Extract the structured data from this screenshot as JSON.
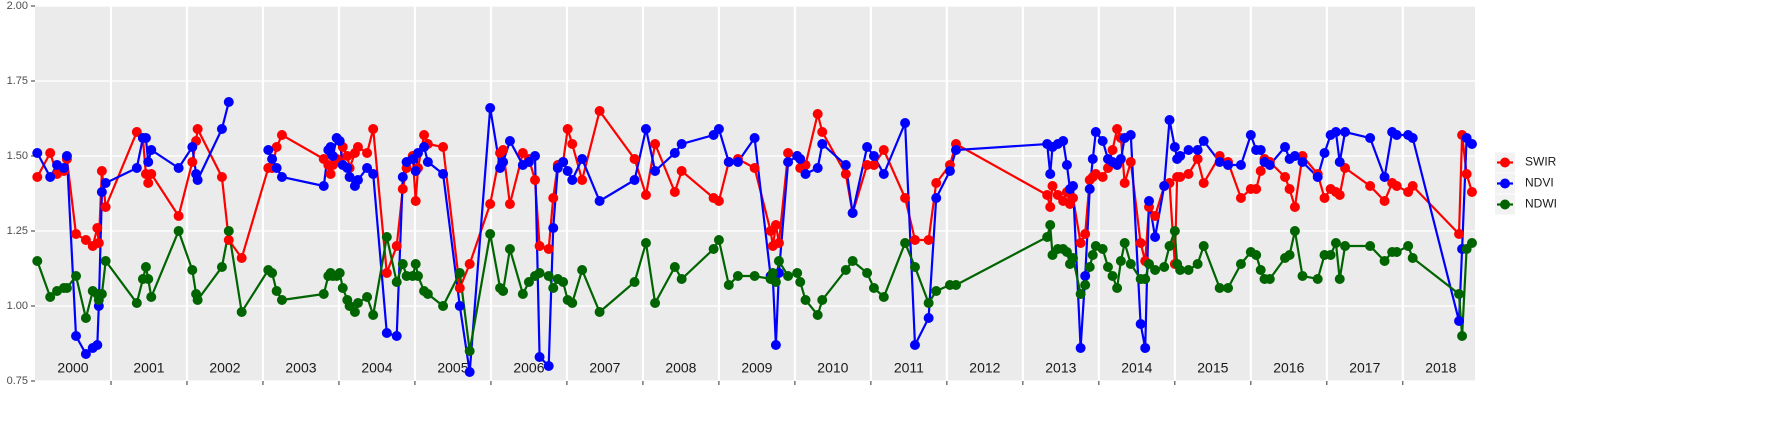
{
  "chart_data": {
    "type": "line",
    "x": [
      2000.03,
      2000.2,
      2000.29,
      2000.38,
      2000.42,
      2000.54,
      2000.67,
      2000.76,
      2000.82,
      2000.84,
      2000.88,
      2000.93,
      2001.34,
      2001.42,
      2001.46,
      2001.49,
      2001.53,
      2001.89,
      2002.07,
      2002.12,
      2002.14,
      2002.46,
      2002.55,
      2002.72,
      2003.07,
      2003.12,
      2003.18,
      2003.25,
      2003.8,
      2003.86,
      2003.89,
      2003.92,
      2003.97,
      2004.01,
      2004.05,
      2004.11,
      2004.14,
      2004.21,
      2004.25,
      2004.37,
      2004.45,
      2004.63,
      2004.76,
      2004.84,
      2004.89,
      2004.97,
      2005.01,
      2005.04,
      2005.12,
      2005.17,
      2005.37,
      2005.59,
      2005.72,
      2005.99,
      2006.12,
      2006.16,
      2006.25,
      2006.42,
      2006.5,
      2006.58,
      2006.64,
      2006.76,
      2006.82,
      2006.88,
      2006.95,
      2007.01,
      2007.07,
      2007.2,
      2007.43,
      2007.89,
      2008.04,
      2008.16,
      2008.42,
      2008.51,
      2008.93,
      2009.0,
      2009.13,
      2009.25,
      2009.47,
      2009.68,
      2009.71,
      2009.75,
      2009.79,
      2009.91,
      2010.03,
      2010.07,
      2010.14,
      2010.3,
      2010.36,
      2010.67,
      2010.76,
      2010.95,
      2011.04,
      2011.17,
      2011.45,
      2011.58,
      2011.76,
      2011.86,
      2012.04,
      2012.12,
      2013.32,
      2013.36,
      2013.39,
      2013.46,
      2013.53,
      2013.58,
      2013.62,
      2013.66,
      2013.76,
      2013.82,
      2013.88,
      2013.92,
      2013.96,
      2014.05,
      2014.12,
      2014.18,
      2014.24,
      2014.29,
      2014.34,
      2014.42,
      2014.55,
      2014.61,
      2014.66,
      2014.74,
      2014.86,
      2014.93,
      2015.0,
      2015.03,
      2015.07,
      2015.18,
      2015.3,
      2015.38,
      2015.59,
      2015.7,
      2015.87,
      2016.0,
      2016.07,
      2016.13,
      2016.18,
      2016.25,
      2016.45,
      2016.51,
      2016.58,
      2016.68,
      2016.88,
      2016.97,
      2017.05,
      2017.12,
      2017.17,
      2017.24,
      2017.57,
      2017.76,
      2017.86,
      2017.92,
      2018.07,
      2018.13,
      2018.74,
      2018.78,
      2018.84,
      2018.91
    ],
    "series": [
      {
        "name": "SWIR",
        "color": "#ff0000",
        "values": [
          1.43,
          1.51,
          1.44,
          1.45,
          1.49,
          1.24,
          1.22,
          1.2,
          1.26,
          1.21,
          1.45,
          1.33,
          1.58,
          1.56,
          1.44,
          1.41,
          1.44,
          1.3,
          1.48,
          1.55,
          1.59,
          1.43,
          1.22,
          1.16,
          1.46,
          1.46,
          1.53,
          1.57,
          1.49,
          1.47,
          1.44,
          1.47,
          1.49,
          1.48,
          1.53,
          1.5,
          1.46,
          1.51,
          1.53,
          1.51,
          1.59,
          1.11,
          1.2,
          1.39,
          1.46,
          1.5,
          1.35,
          1.46,
          1.57,
          1.54,
          1.53,
          1.06,
          1.14,
          1.34,
          1.51,
          1.52,
          1.34,
          1.51,
          1.49,
          1.42,
          1.2,
          1.19,
          1.36,
          1.47,
          1.48,
          1.59,
          1.54,
          1.42,
          1.65,
          1.49,
          1.37,
          1.54,
          1.38,
          1.45,
          1.36,
          1.35,
          1.48,
          1.49,
          1.46,
          1.25,
          1.2,
          1.27,
          1.21,
          1.51,
          1.5,
          1.46,
          1.47,
          1.64,
          1.58,
          1.44,
          1.31,
          1.47,
          1.47,
          1.52,
          1.36,
          1.22,
          1.22,
          1.41,
          1.47,
          1.54,
          1.37,
          1.33,
          1.4,
          1.37,
          1.35,
          1.38,
          1.34,
          1.36,
          1.21,
          1.24,
          1.42,
          1.43,
          1.44,
          1.43,
          1.46,
          1.52,
          1.59,
          1.56,
          1.41,
          1.48,
          1.21,
          1.15,
          1.33,
          1.3,
          1.4,
          1.41,
          1.14,
          1.43,
          1.43,
          1.44,
          1.49,
          1.41,
          1.5,
          1.48,
          1.36,
          1.39,
          1.39,
          1.45,
          1.49,
          1.48,
          1.43,
          1.39,
          1.33,
          1.5,
          1.44,
          1.36,
          1.39,
          1.38,
          1.37,
          1.46,
          1.4,
          1.35,
          1.41,
          1.4,
          1.38,
          1.4,
          1.24,
          1.57,
          1.44,
          1.38
        ]
      },
      {
        "name": "NDVI",
        "color": "#0000ff",
        "values": [
          1.51,
          1.43,
          1.47,
          1.46,
          1.5,
          0.9,
          0.84,
          0.86,
          0.87,
          1.0,
          1.38,
          1.41,
          1.46,
          1.56,
          1.56,
          1.48,
          1.52,
          1.46,
          1.53,
          1.44,
          1.42,
          1.59,
          1.68,
          null,
          1.52,
          1.49,
          1.46,
          1.43,
          1.4,
          1.52,
          1.53,
          1.5,
          1.56,
          1.55,
          1.47,
          1.46,
          1.43,
          1.4,
          1.42,
          1.46,
          1.44,
          0.91,
          0.9,
          1.43,
          1.48,
          1.49,
          1.45,
          1.51,
          1.53,
          1.48,
          1.44,
          1.0,
          0.78,
          1.66,
          1.46,
          1.48,
          1.55,
          1.47,
          1.48,
          1.5,
          0.83,
          0.8,
          1.26,
          1.46,
          1.48,
          1.45,
          1.42,
          1.49,
          1.35,
          1.42,
          1.59,
          1.45,
          1.51,
          1.54,
          1.57,
          1.59,
          1.48,
          1.48,
          1.56,
          1.1,
          1.09,
          0.87,
          1.11,
          1.48,
          1.5,
          1.49,
          1.44,
          1.46,
          1.54,
          1.47,
          1.31,
          1.53,
          1.5,
          1.44,
          1.61,
          0.87,
          0.96,
          1.36,
          1.45,
          1.52,
          1.54,
          1.44,
          1.53,
          1.54,
          1.55,
          1.47,
          1.39,
          1.4,
          0.86,
          1.1,
          1.39,
          1.49,
          1.58,
          1.55,
          1.49,
          1.48,
          1.47,
          1.49,
          1.56,
          1.57,
          0.94,
          0.86,
          1.35,
          1.23,
          1.4,
          1.62,
          1.53,
          1.49,
          1.5,
          1.52,
          1.52,
          1.55,
          1.48,
          1.47,
          1.47,
          1.57,
          1.52,
          1.52,
          1.48,
          1.47,
          1.53,
          1.49,
          1.5,
          1.48,
          1.43,
          1.51,
          1.57,
          1.58,
          1.48,
          1.58,
          1.56,
          1.43,
          1.58,
          1.57,
          1.57,
          1.56,
          0.95,
          1.19,
          1.56,
          1.54
        ]
      },
      {
        "name": "NDWI",
        "color": "#006400",
        "values": [
          1.15,
          1.03,
          1.05,
          1.06,
          1.06,
          1.1,
          0.96,
          1.05,
          1.04,
          1.02,
          1.04,
          1.15,
          1.01,
          1.09,
          1.13,
          1.09,
          1.03,
          1.25,
          1.12,
          1.04,
          1.02,
          1.13,
          1.25,
          0.98,
          1.12,
          1.11,
          1.05,
          1.02,
          1.04,
          1.1,
          1.11,
          1.1,
          1.1,
          1.11,
          1.06,
          1.02,
          1.0,
          0.98,
          1.01,
          1.03,
          0.97,
          1.23,
          1.08,
          1.14,
          1.1,
          1.1,
          1.14,
          1.1,
          1.05,
          1.04,
          1.0,
          1.11,
          0.85,
          1.24,
          1.06,
          1.05,
          1.19,
          1.04,
          1.08,
          1.1,
          1.11,
          1.1,
          1.06,
          1.09,
          1.08,
          1.02,
          1.01,
          1.12,
          0.98,
          1.08,
          1.21,
          1.01,
          1.13,
          1.09,
          1.19,
          1.22,
          1.07,
          1.1,
          1.1,
          1.09,
          1.11,
          1.08,
          1.15,
          1.1,
          1.11,
          1.08,
          1.02,
          0.97,
          1.02,
          1.12,
          1.15,
          1.11,
          1.06,
          1.03,
          1.21,
          1.13,
          1.01,
          1.05,
          1.07,
          1.07,
          1.23,
          1.27,
          1.17,
          1.19,
          1.19,
          1.18,
          1.14,
          1.16,
          1.04,
          1.07,
          1.13,
          1.17,
          1.2,
          1.19,
          1.13,
          1.1,
          1.06,
          1.15,
          1.21,
          1.14,
          1.09,
          1.09,
          1.14,
          1.12,
          1.13,
          1.2,
          1.25,
          1.14,
          1.12,
          1.12,
          1.14,
          1.2,
          1.06,
          1.06,
          1.14,
          1.18,
          1.17,
          1.12,
          1.09,
          1.09,
          1.16,
          1.17,
          1.25,
          1.1,
          1.09,
          1.17,
          1.17,
          1.21,
          1.09,
          1.2,
          1.2,
          1.15,
          1.18,
          1.18,
          1.2,
          1.16,
          1.04,
          0.9,
          1.19,
          1.21
        ]
      }
    ],
    "xlim": [
      2000,
      2018.95
    ],
    "xticks": [
      2001,
      2002,
      2003,
      2004,
      2005,
      2006,
      2007,
      2008,
      2009,
      2010,
      2011,
      2012,
      2013,
      2014,
      2015,
      2016,
      2017,
      2018
    ],
    "ylim": [
      0.75,
      2.0
    ],
    "yticks": [
      0.75,
      {
        "value": 1,
        "label": "1.00"
      },
      1.25,
      {
        "value": 1.5,
        "label": "1.50"
      },
      1.75,
      {
        "value": 2,
        "label": "2.00"
      }
    ],
    "annotations": [
      {
        "label": "2000",
        "x": 2000.5,
        "y": 0.79
      },
      {
        "label": "2001",
        "x": 2001.5,
        "y": 0.79
      },
      {
        "label": "2002",
        "x": 2002.5,
        "y": 0.79
      },
      {
        "label": "2003",
        "x": 2003.5,
        "y": 0.79
      },
      {
        "label": "2004",
        "x": 2004.5,
        "y": 0.79
      },
      {
        "label": "2005",
        "x": 2005.5,
        "y": 0.79
      },
      {
        "label": "2006",
        "x": 2006.5,
        "y": 0.79
      },
      {
        "label": "2007",
        "x": 2007.5,
        "y": 0.79
      },
      {
        "label": "2008",
        "x": 2008.5,
        "y": 0.79
      },
      {
        "label": "2009",
        "x": 2009.5,
        "y": 0.79
      },
      {
        "label": "2010",
        "x": 2010.5,
        "y": 0.79
      },
      {
        "label": "2011",
        "x": 2011.5,
        "y": 0.79
      },
      {
        "label": "2012",
        "x": 2012.5,
        "y": 0.79
      },
      {
        "label": "2013",
        "x": 2013.5,
        "y": 0.79
      },
      {
        "label": "2014",
        "x": 2014.5,
        "y": 0.79
      },
      {
        "label": "2015",
        "x": 2015.5,
        "y": 0.79
      },
      {
        "label": "2016",
        "x": 2016.5,
        "y": 0.79
      },
      {
        "label": "2017",
        "x": 2017.5,
        "y": 0.79
      },
      {
        "label": "2018",
        "x": 2018.5,
        "y": 0.79
      }
    ],
    "grid": true,
    "legend": "right"
  }
}
